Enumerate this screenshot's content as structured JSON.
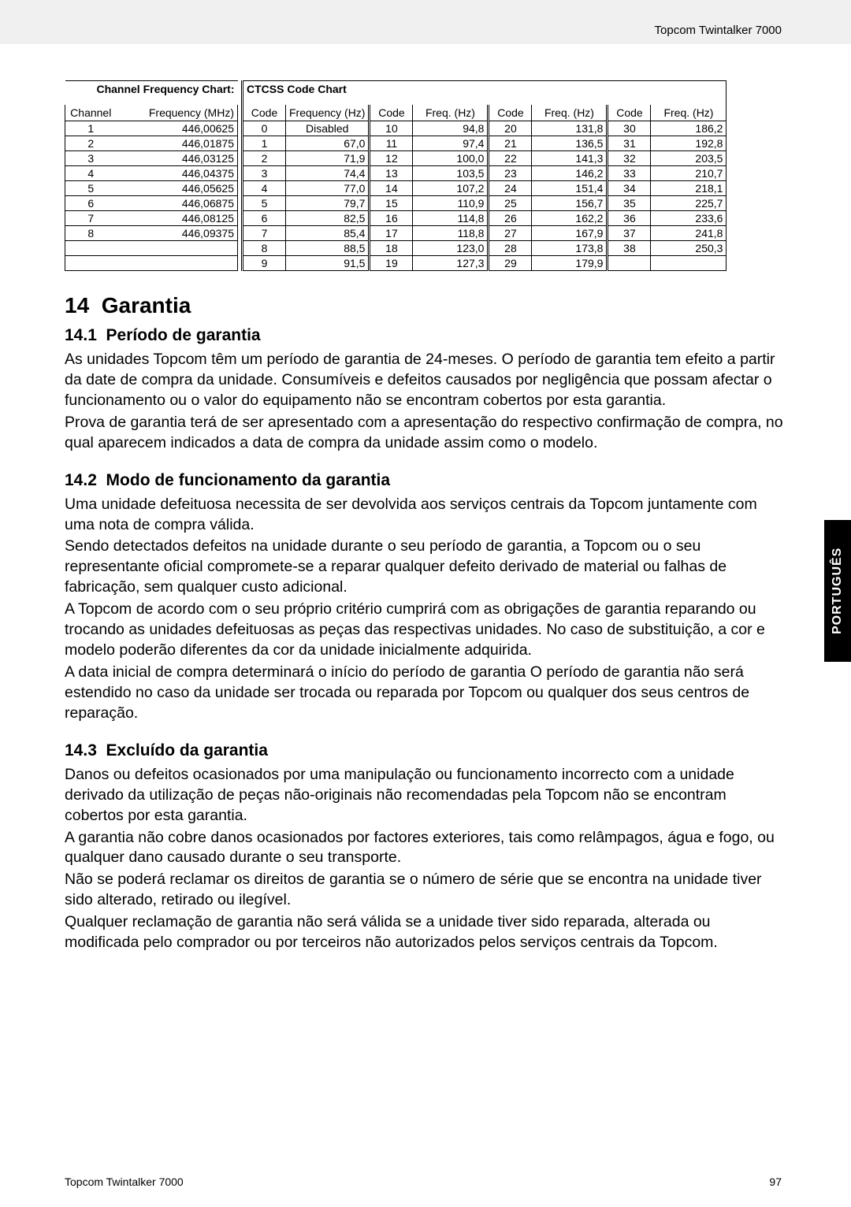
{
  "header": {
    "product": "Topcom Twintalker 7000"
  },
  "footer": {
    "product": "Topcom Twintalker 7000",
    "page": "97"
  },
  "sideTab": "PORTUGUÊS",
  "tables": {
    "cfc": {
      "title": "Channel Frequency Chart:",
      "cols": [
        "Channel",
        "Frequency (MHz)"
      ],
      "rows": [
        [
          "1",
          "446,00625"
        ],
        [
          "2",
          "446,01875"
        ],
        [
          "3",
          "446,03125"
        ],
        [
          "4",
          "446,04375"
        ],
        [
          "5",
          "446,05625"
        ],
        [
          "6",
          "446,06875"
        ],
        [
          "7",
          "446,08125"
        ],
        [
          "8",
          "446,09375"
        ],
        [
          "",
          ""
        ],
        [
          "",
          ""
        ]
      ]
    },
    "ctcss": {
      "title": "CTCSS Code Chart",
      "cols": [
        "Code",
        "Frequency (Hz)",
        "Code",
        "Freq. (Hz)",
        "Code",
        "Freq. (Hz)",
        "Code",
        "Freq. (Hz)"
      ],
      "rows": [
        [
          "0",
          "Disabled",
          "10",
          "94,8",
          "20",
          "131,8",
          "30",
          "186,2"
        ],
        [
          "1",
          "67,0",
          "11",
          "97,4",
          "21",
          "136,5",
          "31",
          "192,8"
        ],
        [
          "2",
          "71,9",
          "12",
          "100,0",
          "22",
          "141,3",
          "32",
          "203,5"
        ],
        [
          "3",
          "74,4",
          "13",
          "103,5",
          "23",
          "146,2",
          "33",
          "210,7"
        ],
        [
          "4",
          "77,0",
          "14",
          "107,2",
          "24",
          "151,4",
          "34",
          "218,1"
        ],
        [
          "5",
          "79,7",
          "15",
          "110,9",
          "25",
          "156,7",
          "35",
          "225,7"
        ],
        [
          "6",
          "82,5",
          "16",
          "114,8",
          "26",
          "162,2",
          "36",
          "233,6"
        ],
        [
          "7",
          "85,4",
          "17",
          "118,8",
          "27",
          "167,9",
          "37",
          "241,8"
        ],
        [
          "8",
          "88,5",
          "18",
          "123,0",
          "28",
          "173,8",
          "38",
          "250,3"
        ],
        [
          "9",
          "91,5",
          "19",
          "127,3",
          "29",
          "179,9",
          "",
          ""
        ]
      ]
    }
  },
  "section": {
    "num": "14",
    "title": "Garantia",
    "s1": {
      "num": "14.1",
      "title": "Período de garantia",
      "p1": "As unidades Topcom têm um período de garantia de 24-meses. O período de garantia tem efeito a partir da date de compra da unidade. Consumíveis e defeitos causados por negligência que possam afectar o funcionamento ou o valor do equipamento não se encontram cobertos por esta garantia.",
      "p2": "Prova de garantia terá de ser apresentado com a apresentação do respectivo confirmação de compra, no qual aparecem indicados a data de compra da unidade assim como o modelo."
    },
    "s2": {
      "num": "14.2",
      "title": "Modo de funcionamento da garantia",
      "p1": "Uma unidade defeituosa necessita de ser devolvida aos serviços centrais da Topcom juntamente com uma nota de compra válida.",
      "p2": "Sendo detectados defeitos na unidade durante o seu período de garantia, a Topcom ou o seu representante oficial compromete-se a reparar qualquer defeito derivado de material ou falhas de fabricação, sem qualquer custo adicional.",
      "p3": "A Topcom de acordo com o seu próprio critério cumprirá com as obrigações de garantia reparando ou trocando as unidades defeituosas as peças das respectivas unidades. No caso de substituição, a cor e modelo poderão diferentes da cor da unidade inicialmente adquirida.",
      "p4": "A data inicial de compra determinará o início do período de garantia O período de garantia não será estendido no caso da unidade ser trocada ou reparada por Topcom ou qualquer dos seus centros de reparação."
    },
    "s3": {
      "num": "14.3",
      "title": "Excluído da garantia",
      "p1": "Danos ou defeitos ocasionados por uma manipulação ou funcionamento incorrecto com a unidade derivado da utilização de peças não-originais não recomendadas pela Topcom não se encontram cobertos por esta garantia.",
      "p2": "A garantia não cobre danos ocasionados por factores exteriores, tais como relâmpagos, água e fogo, ou qualquer dano causado durante o seu transporte.",
      "p3": "Não se poderá reclamar os direitos de garantia se o número de série que se encontra na unidade tiver sido alterado, retirado ou ilegível.",
      "p4": "Qualquer reclamação de garantia não será válida se a unidade tiver sido reparada, alterada ou modificada pelo comprador ou por terceiros não autorizados pelos serviços centrais da Topcom."
    }
  }
}
